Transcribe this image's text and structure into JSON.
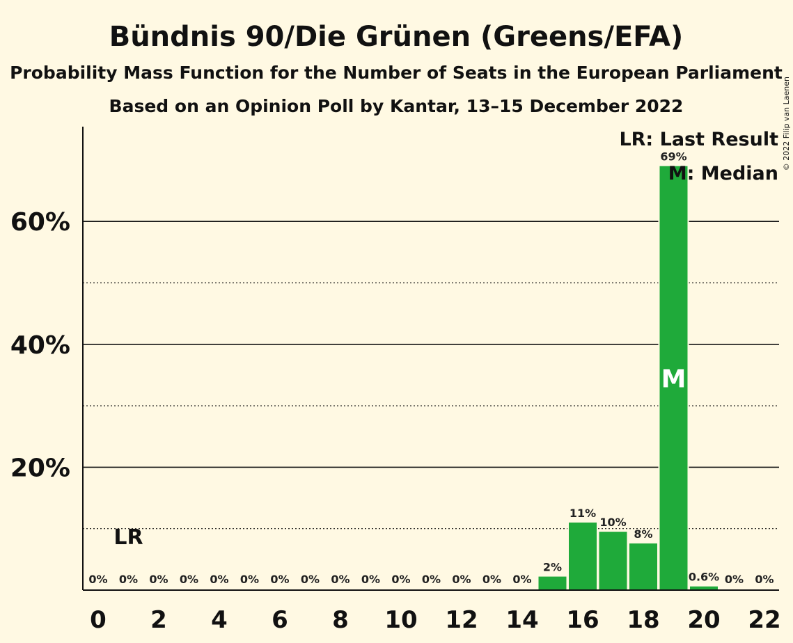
{
  "title": "Bündnis 90/Die Grünen (Greens/EFA)",
  "subtitle": "Probability Mass Function for the Number of Seats in the European Parliament",
  "subtitle2": "Based on an Opinion Poll by Kantar, 13–15 December 2022",
  "copyright": "© 2022 Filip van Laenen",
  "legend": {
    "lr": "LR: Last Result",
    "m": "M: Median"
  },
  "markers": {
    "lr_label": "LR",
    "median_label": "M"
  },
  "colors": {
    "background": "#FFF9E3",
    "bar": "#1FAA3A"
  },
  "chart_data": {
    "type": "bar",
    "x": [
      0,
      1,
      2,
      3,
      4,
      5,
      6,
      7,
      8,
      9,
      10,
      11,
      12,
      13,
      14,
      15,
      16,
      17,
      18,
      19,
      20,
      21,
      22
    ],
    "values": [
      0,
      0,
      0,
      0,
      0,
      0,
      0,
      0,
      0,
      0,
      0,
      0,
      0,
      0,
      0,
      2.2,
      11,
      9.5,
      7.6,
      69,
      0.6,
      0,
      0
    ],
    "data_labels": [
      "0%",
      "0%",
      "0%",
      "0%",
      "0%",
      "0%",
      "0%",
      "0%",
      "0%",
      "0%",
      "0%",
      "0%",
      "0%",
      "0%",
      "0%",
      "2%",
      "11%",
      "10%",
      "8%",
      "69%",
      "0.6%",
      "0%",
      "0%"
    ],
    "x_ticks": [
      "0",
      "2",
      "4",
      "6",
      "8",
      "10",
      "12",
      "14",
      "16",
      "18",
      "20",
      "22"
    ],
    "y_ticks": [
      {
        "value": 20,
        "label": "20%"
      },
      {
        "value": 40,
        "label": "40%"
      },
      {
        "value": 60,
        "label": "60%"
      }
    ],
    "ylim": [
      0,
      75
    ],
    "last_result": 1,
    "median": 19,
    "grid": "solid at 20/40/60, dotted at 10/30/50",
    "legend_position": "top-right"
  }
}
